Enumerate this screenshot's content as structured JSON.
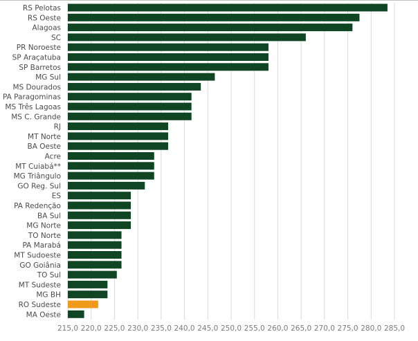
{
  "chart_data": {
    "type": "bar",
    "orientation": "horizontal",
    "title": "",
    "xlabel": "",
    "ylabel": "",
    "xlim": [
      215,
      285
    ],
    "x_ticks": [
      "215,0",
      "220,0",
      "225,0",
      "230,0",
      "235,0",
      "240,0",
      "245,0",
      "250,0",
      "255,0",
      "260,0",
      "265,0",
      "270,0",
      "275,0",
      "280,0",
      "285,0"
    ],
    "grid": true,
    "colors": {
      "default": "#0f4522",
      "highlight": "#f09a1c"
    },
    "highlight_category": "RO Sudeste",
    "categories": [
      "RS Pelotas",
      "RS Oeste",
      "Alagoas",
      "SC",
      "PR Noroeste",
      "SP Araçatuba",
      "SP Barretos",
      "MG Sul",
      "MS Dourados",
      "PA Paragominas",
      "MS Três Lagoas",
      "MS C. Grande",
      "RJ",
      "MT Norte",
      "BA Oeste",
      "Acre",
      "MT Cuiabá**",
      "MG Triângulo",
      "GO Reg. Sul",
      "ES",
      "PA Redenção",
      "BA Sul",
      "MG Norte",
      "TO Norte",
      "PA Marabá",
      "MT Sudoeste",
      "GO Goiânia",
      "TO Sul",
      "MT Sudeste",
      "MG BH",
      "RO Sudeste",
      "MA Oeste"
    ],
    "values": [
      283.5,
      277.5,
      276.0,
      266.0,
      258.0,
      258.0,
      258.0,
      246.5,
      243.5,
      241.5,
      241.5,
      241.5,
      236.5,
      236.5,
      236.5,
      233.5,
      233.5,
      233.5,
      231.5,
      228.5,
      228.5,
      228.5,
      228.5,
      226.5,
      226.5,
      226.5,
      226.5,
      225.5,
      223.5,
      223.5,
      221.5,
      218.5
    ]
  }
}
